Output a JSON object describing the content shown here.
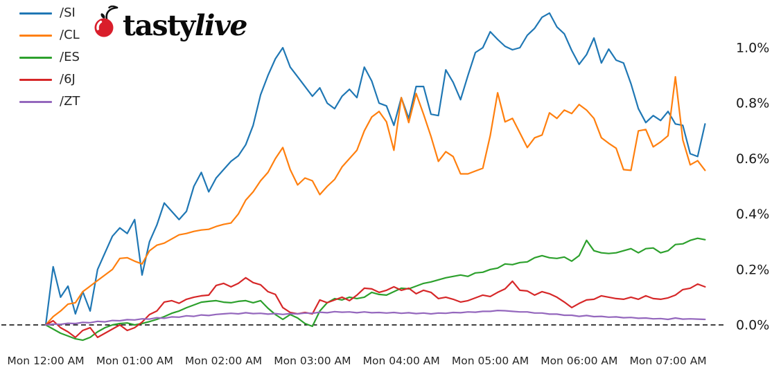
{
  "logo": {
    "brand_regular": "tasty",
    "brand_italic": "live",
    "cherry_color": "#d91e2b",
    "stem_color": "#111111",
    "text_color": "#0a0a0a"
  },
  "legend": {
    "position": "upper-left",
    "items": [
      {
        "label": "/SI",
        "color": "#1f77b4"
      },
      {
        "label": "/CL",
        "color": "#ff7f0e"
      },
      {
        "label": "/ES",
        "color": "#2ca02c"
      },
      {
        "label": "/6J",
        "color": "#d62728"
      },
      {
        "label": "/ZT",
        "color": "#9467bd"
      }
    ]
  },
  "chart_data": {
    "type": "line",
    "title": "",
    "xlabel": "",
    "ylabel": "",
    "grid": false,
    "legend_position": "upper-left",
    "x_axis": {
      "tick_labels": [
        "Mon 12:00 AM",
        "Mon 01:00 AM",
        "Mon 02:00 AM",
        "Mon 03:00 AM",
        "Mon 04:00 AM",
        "Mon 05:00 AM",
        "Mon 06:00 AM",
        "Mon 07:00 AM"
      ],
      "tick_hours": [
        0,
        1,
        2,
        3,
        4,
        5,
        6,
        7
      ],
      "points_step_minutes": 5,
      "span_hours": 7.42
    },
    "y_axis": {
      "unit": "percent",
      "tick_labels": [
        "1.0%",
        "0.8%",
        "0.6%",
        "0.4%",
        "0.2%",
        "0.0%"
      ],
      "tick_values": [
        1.0,
        0.8,
        0.6,
        0.4,
        0.2,
        0.0
      ],
      "ylim": [
        -0.17,
        1.22
      ],
      "label_color": "#1a1a1a"
    },
    "zero_line": {
      "value": 0.0,
      "style": "dashed",
      "color": "#000000"
    },
    "series": [
      {
        "name": "/SI",
        "color": "#1f77b4",
        "values": [
          0.0,
          0.21,
          0.1,
          0.14,
          0.04,
          0.12,
          0.05,
          0.2,
          0.26,
          0.32,
          0.35,
          0.33,
          0.38,
          0.18,
          0.3,
          0.36,
          0.44,
          0.41,
          0.38,
          0.41,
          0.5,
          0.55,
          0.48,
          0.53,
          0.56,
          0.59,
          0.61,
          0.65,
          0.72,
          0.83,
          0.9,
          0.96,
          1.0,
          0.93,
          0.895,
          0.86,
          0.825,
          0.855,
          0.8,
          0.78,
          0.825,
          0.85,
          0.82,
          0.93,
          0.88,
          0.8,
          0.79,
          0.72,
          0.82,
          0.745,
          0.86,
          0.86,
          0.76,
          0.755,
          0.92,
          0.875,
          0.8125,
          0.9,
          0.9825,
          1.0,
          1.0575,
          1.03,
          1.005,
          0.9925,
          1.0,
          1.045,
          1.07,
          1.11,
          1.125,
          1.075,
          1.05,
          0.99,
          0.94,
          0.975,
          1.035,
          0.945,
          0.995,
          0.955,
          0.945,
          0.87,
          0.78,
          0.73,
          0.755,
          0.7375,
          0.77,
          0.725,
          0.72,
          0.6175,
          0.6075,
          0.725
        ]
      },
      {
        "name": "/CL",
        "color": "#ff7f0e",
        "values": [
          0.0,
          0.03,
          0.05,
          0.075,
          0.08,
          0.12,
          0.14,
          0.16,
          0.18,
          0.2,
          0.24,
          0.2425,
          0.23,
          0.22,
          0.2675,
          0.2875,
          0.295,
          0.31,
          0.325,
          0.33,
          0.3375,
          0.3425,
          0.345,
          0.355,
          0.3625,
          0.3675,
          0.4,
          0.45,
          0.48,
          0.52,
          0.55,
          0.6,
          0.64,
          0.56,
          0.505,
          0.53,
          0.52,
          0.47,
          0.5,
          0.525,
          0.57,
          0.6,
          0.63,
          0.7,
          0.75,
          0.77,
          0.7325,
          0.63,
          0.82,
          0.73,
          0.835,
          0.76,
          0.68,
          0.59,
          0.625,
          0.6075,
          0.545,
          0.545,
          0.555,
          0.565,
          0.6825,
          0.8375,
          0.7325,
          0.745,
          0.6925,
          0.64,
          0.675,
          0.685,
          0.765,
          0.745,
          0.775,
          0.7625,
          0.795,
          0.775,
          0.745,
          0.675,
          0.655,
          0.6375,
          0.56,
          0.5575,
          0.7,
          0.705,
          0.6425,
          0.66,
          0.6825,
          0.895,
          0.6675,
          0.5775,
          0.5925,
          0.5575
        ]
      },
      {
        "name": "/ES",
        "color": "#2ca02c",
        "values": [
          0.0,
          -0.015,
          -0.03,
          -0.04,
          -0.05,
          -0.055,
          -0.045,
          -0.025,
          -0.01,
          0.0,
          0.005,
          0.007,
          0.0,
          0.005,
          0.012,
          0.02,
          0.03,
          0.042,
          0.05,
          0.062,
          0.072,
          0.082,
          0.085,
          0.0875,
          0.082,
          0.08,
          0.085,
          0.0875,
          0.08,
          0.0875,
          0.06,
          0.0375,
          0.02,
          0.0375,
          0.025,
          0.005,
          -0.005,
          0.05,
          0.08,
          0.095,
          0.09,
          0.1,
          0.095,
          0.1,
          0.1175,
          0.11,
          0.1075,
          0.12,
          0.1325,
          0.13,
          0.14,
          0.15,
          0.155,
          0.1625,
          0.17,
          0.175,
          0.18,
          0.175,
          0.1875,
          0.19,
          0.2,
          0.205,
          0.22,
          0.2175,
          0.225,
          0.2275,
          0.2425,
          0.25,
          0.2425,
          0.24,
          0.245,
          0.23,
          0.25,
          0.305,
          0.2675,
          0.26,
          0.2575,
          0.26,
          0.2675,
          0.275,
          0.26,
          0.275,
          0.2775,
          0.26,
          0.2675,
          0.29,
          0.2925,
          0.305,
          0.3125,
          0.3075
        ]
      },
      {
        "name": "/6J",
        "color": "#d62728",
        "values": [
          0.0,
          0.015,
          -0.01,
          -0.025,
          -0.045,
          -0.02,
          -0.01,
          -0.045,
          -0.03,
          -0.015,
          0.0,
          -0.02,
          -0.01,
          0.01,
          0.0375,
          0.05,
          0.0825,
          0.0875,
          0.078,
          0.0925,
          0.1,
          0.105,
          0.1075,
          0.1425,
          0.15,
          0.1375,
          0.15,
          0.17,
          0.1525,
          0.145,
          0.12,
          0.11,
          0.0625,
          0.045,
          0.04,
          0.045,
          0.04,
          0.09,
          0.08,
          0.09,
          0.1,
          0.0875,
          0.1075,
          0.1325,
          0.13,
          0.1175,
          0.125,
          0.1375,
          0.125,
          0.1325,
          0.1125,
          0.125,
          0.1175,
          0.095,
          0.1,
          0.0925,
          0.0825,
          0.0875,
          0.0975,
          0.1075,
          0.1025,
          0.1175,
          0.13,
          0.1575,
          0.125,
          0.1225,
          0.1075,
          0.12,
          0.1125,
          0.1,
          0.0825,
          0.0625,
          0.0775,
          0.09,
          0.0925,
          0.105,
          0.1,
          0.095,
          0.0925,
          0.1,
          0.0925,
          0.105,
          0.095,
          0.0925,
          0.0975,
          0.1075,
          0.1275,
          0.1325,
          0.1475,
          0.1375
        ]
      },
      {
        "name": "/ZT",
        "color": "#9467bd",
        "values": [
          0.0,
          0.003,
          0.002,
          0.006,
          0.005,
          0.009,
          0.008,
          0.013,
          0.011,
          0.016,
          0.015,
          0.019,
          0.018,
          0.022,
          0.021,
          0.026,
          0.024,
          0.029,
          0.028,
          0.033,
          0.031,
          0.036,
          0.034,
          0.038,
          0.04,
          0.042,
          0.04,
          0.044,
          0.041,
          0.042,
          0.039,
          0.041,
          0.038,
          0.041,
          0.04,
          0.043,
          0.042,
          0.046,
          0.044,
          0.048,
          0.046,
          0.047,
          0.044,
          0.047,
          0.044,
          0.045,
          0.043,
          0.045,
          0.042,
          0.044,
          0.041,
          0.043,
          0.04,
          0.043,
          0.042,
          0.045,
          0.044,
          0.047,
          0.046,
          0.049,
          0.049,
          0.052,
          0.051,
          0.049,
          0.047,
          0.047,
          0.043,
          0.043,
          0.039,
          0.039,
          0.035,
          0.035,
          0.031,
          0.034,
          0.03,
          0.031,
          0.028,
          0.029,
          0.026,
          0.027,
          0.024,
          0.025,
          0.022,
          0.023,
          0.02,
          0.025,
          0.021,
          0.022,
          0.021,
          0.02
        ]
      }
    ]
  }
}
